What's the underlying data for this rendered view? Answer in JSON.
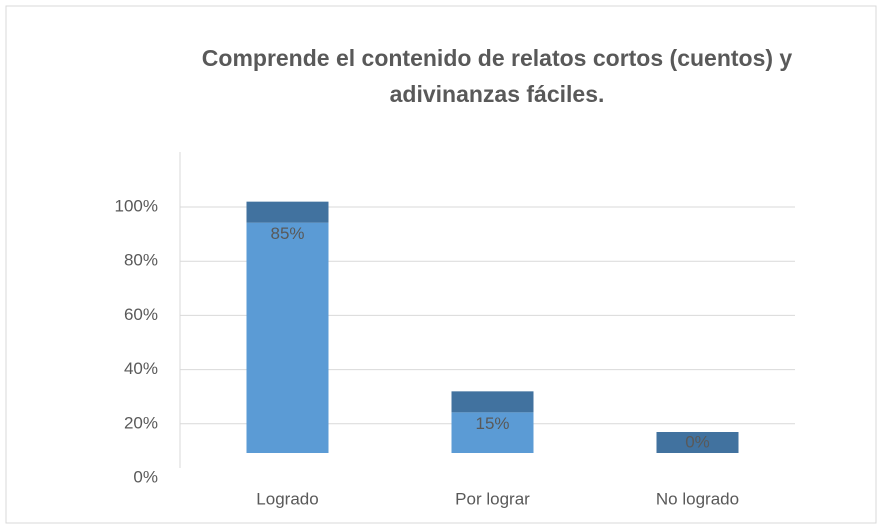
{
  "chart_data": {
    "type": "bar3d",
    "title": "Comprende el contenido de relatos cortos (cuentos) y adivinanzas fáciles.",
    "categories": [
      "Logrado",
      "Por lograr",
      "No logrado"
    ],
    "values": [
      85,
      15,
      0
    ],
    "value_labels": [
      "85%",
      "15%",
      "0%"
    ],
    "color": "#5b9bd5",
    "top_color": "#41729f",
    "ylim": [
      0,
      100
    ],
    "yticks": [
      {
        "value": 0,
        "label": "0%"
      },
      {
        "value": 20,
        "label": "20%"
      },
      {
        "value": 40,
        "label": "40%"
      },
      {
        "value": 60,
        "label": "60%"
      },
      {
        "value": 80,
        "label": "80%"
      },
      {
        "value": 100,
        "label": "100%"
      }
    ],
    "grid": true
  }
}
